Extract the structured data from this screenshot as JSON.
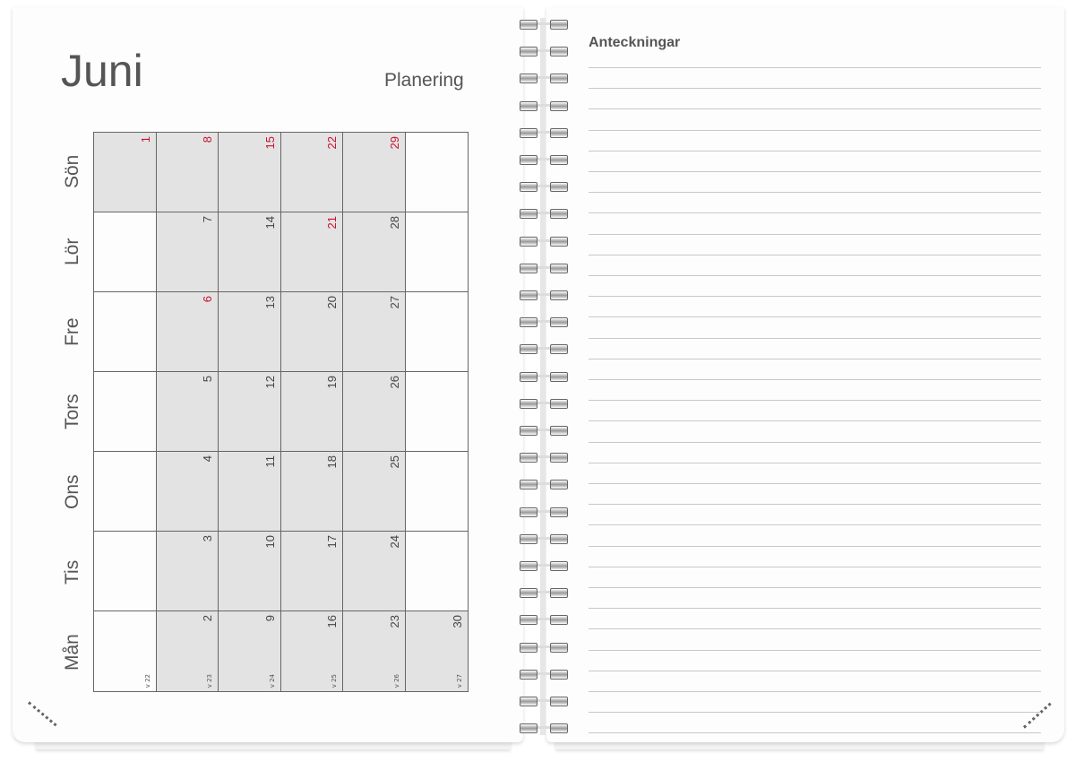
{
  "left_page": {
    "month": "Juni",
    "subtitle": "Planering",
    "day_labels": [
      "Sön",
      "Lör",
      "Fre",
      "Tors",
      "Ons",
      "Tis",
      "Mån"
    ],
    "week_labels": [
      "v 22",
      "v 23",
      "v 24",
      "v 25",
      "v 26",
      "v 27"
    ],
    "grid": [
      [
        "1",
        "8",
        "15",
        "22",
        "29",
        ""
      ],
      [
        "",
        "7",
        "14",
        "21",
        "28",
        ""
      ],
      [
        "",
        "6",
        "13",
        "20",
        "27",
        ""
      ],
      [
        "",
        "5",
        "12",
        "19",
        "26",
        ""
      ],
      [
        "",
        "4",
        "11",
        "18",
        "25",
        ""
      ],
      [
        "",
        "3",
        "10",
        "17",
        "24",
        ""
      ],
      [
        "",
        "2",
        "9",
        "16",
        "23",
        "30"
      ]
    ],
    "red_days": [
      "1",
      "8",
      "15",
      "22",
      "29",
      "6",
      "21"
    ],
    "colors": {
      "holiday": "#c8102e",
      "in_month": "#e4e3e4",
      "text": "#555555"
    }
  },
  "right_page": {
    "title": "Anteckningar",
    "line_count": 33
  },
  "spiral": {
    "ring_count": 27
  }
}
